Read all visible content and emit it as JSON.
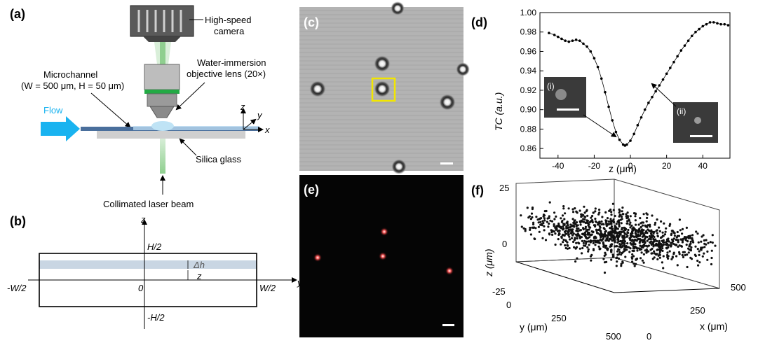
{
  "panel_labels": {
    "a": "(a)",
    "b": "(b)",
    "c": "(c)",
    "d": "(d)",
    "e": "(e)",
    "f": "(f)"
  },
  "panel_a": {
    "camera_line1": "High-speed",
    "camera_line2": "camera",
    "objective_line1": "Water-immersion",
    "objective_line2": "objective lens (20×)",
    "microchannel_line1": "Microchannel",
    "microchannel_line2": "(W = 500 μm, H = 50 μm)",
    "flow": "Flow",
    "glass": "Silica glass",
    "laser": "Collimated laser beam",
    "axis_z": "z",
    "axis_y": "y",
    "axis_x": "x"
  },
  "panel_b": {
    "axis_z": "z",
    "axis_y": "y",
    "top": "H/2",
    "bottom": "-H/2",
    "left": "-W/2",
    "right": "W/2",
    "origin": "0",
    "delta_h": "Δh",
    "z_label": "z"
  },
  "panel_d": {
    "ylabel": "TC (a.u.)",
    "xlabel": "z (μm)",
    "inset_i": "(i)",
    "inset_ii": "(ii)"
  },
  "panel_f": {
    "zlabel": "z (μm)",
    "ylabel": "y (μm)",
    "xlabel": "x (μm)",
    "z_ticks": [
      "25",
      "0",
      "-25"
    ],
    "y_ticks": [
      "0",
      "250",
      "500"
    ],
    "x_ticks": [
      "0",
      "250",
      "500"
    ]
  },
  "colors": {
    "flow_arrow": "#19b3f0",
    "channel": "#4a6f9c",
    "highlight_box": "#f2e600",
    "glass": "#cfcfcf",
    "laser_beam": "#8fcf8f",
    "layer_band": "#c9d6e3"
  },
  "chart_data": [
    {
      "type": "line",
      "xlabel": "z (μm)",
      "ylabel": "TC (a.u.)",
      "xlim": [
        -50,
        55
      ],
      "ylim": [
        0.85,
        1.0
      ],
      "x_ticks": [
        -40,
        -20,
        0,
        20,
        40
      ],
      "y_ticks": [
        0.86,
        0.88,
        0.9,
        0.92,
        0.94,
        0.96,
        0.98,
        1.0
      ],
      "series": [
        {
          "x": [
            -45,
            -42,
            -40,
            -38,
            -36,
            -34,
            -32,
            -30,
            -28,
            -26,
            -24,
            -22,
            -20,
            -18,
            -16,
            -14,
            -12,
            -10,
            -8,
            -6,
            -4,
            -3,
            -2,
            0,
            2,
            4,
            6,
            8,
            10,
            12,
            14,
            16,
            18,
            20,
            22,
            24,
            26,
            28,
            30,
            32,
            34,
            36,
            38,
            40,
            42,
            44,
            46,
            48,
            50,
            52,
            54
          ],
          "y": [
            0.979,
            0.977,
            0.975,
            0.973,
            0.971,
            0.97,
            0.971,
            0.972,
            0.971,
            0.968,
            0.965,
            0.96,
            0.953,
            0.944,
            0.932,
            0.918,
            0.903,
            0.889,
            0.877,
            0.869,
            0.864,
            0.863,
            0.864,
            0.868,
            0.875,
            0.884,
            0.892,
            0.9,
            0.907,
            0.913,
            0.919,
            0.925,
            0.931,
            0.937,
            0.943,
            0.949,
            0.955,
            0.961,
            0.966,
            0.971,
            0.976,
            0.98,
            0.983,
            0.986,
            0.988,
            0.99,
            0.99,
            0.989,
            0.988,
            0.988,
            0.987
          ]
        }
      ]
    },
    {
      "type": "scatter",
      "zlabel": "z (μm)",
      "ylabel": "y (μm)",
      "xlabel": "x (μm)",
      "xlim": [
        0,
        500
      ],
      "ylim": [
        0,
        500
      ],
      "zlim": [
        -25,
        25
      ],
      "x_ticks": [
        0,
        250,
        500
      ],
      "y_ticks": [
        0,
        250,
        500
      ],
      "z_ticks": [
        -25,
        0,
        25
      ]
    }
  ]
}
